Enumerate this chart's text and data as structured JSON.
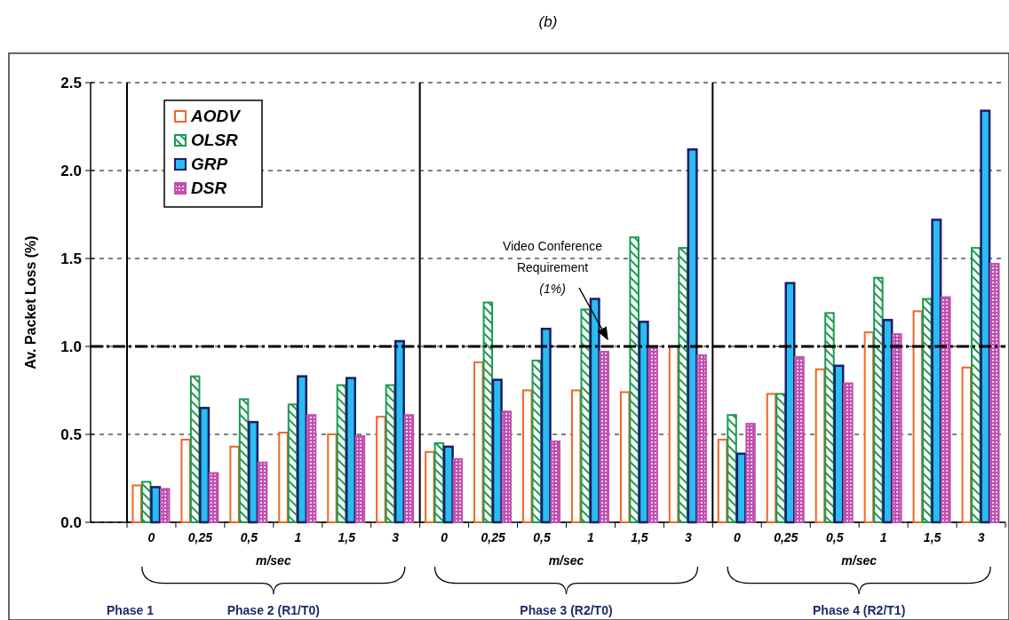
{
  "chart_data": {
    "type": "bar",
    "title": "(b)",
    "ylabel": "Av. Packet Loss (%)",
    "categories": [
      "0",
      "0,25",
      "0,5",
      "1",
      "1,5",
      "3",
      "0",
      "0,25",
      "0,5",
      "1",
      "1,5",
      "3",
      "0",
      "0,25",
      "0,5",
      "1",
      "1,5",
      "3"
    ],
    "series": [
      {
        "name": "AODV",
        "color": "#f26522",
        "values": [
          0.21,
          0.47,
          0.43,
          0.51,
          0.5,
          0.6,
          0.4,
          0.91,
          0.75,
          0.75,
          0.74,
          1.0,
          0.47,
          0.73,
          0.87,
          1.08,
          1.2,
          0.88
        ]
      },
      {
        "name": "OLSR",
        "color": "#1a9a50",
        "values": [
          0.23,
          0.83,
          0.7,
          0.67,
          0.78,
          0.78,
          0.45,
          1.25,
          0.92,
          1.21,
          1.62,
          1.56,
          0.61,
          0.73,
          1.19,
          1.39,
          1.27,
          1.56
        ]
      },
      {
        "name": "GRP",
        "color": "#29bdf0",
        "values": [
          0.2,
          0.65,
          0.57,
          0.83,
          0.82,
          1.03,
          0.43,
          0.81,
          1.1,
          1.27,
          1.14,
          2.12,
          0.39,
          1.36,
          0.89,
          1.15,
          1.72,
          2.34
        ]
      },
      {
        "name": "DSR",
        "color": "#c050b0",
        "values": [
          0.19,
          0.28,
          0.34,
          0.61,
          0.49,
          0.61,
          0.36,
          0.63,
          0.46,
          0.97,
          1.0,
          0.95,
          0.56,
          0.94,
          0.79,
          1.07,
          1.28,
          1.47
        ]
      }
    ],
    "ylim": [
      0,
      2.5
    ],
    "yticks": [
      {
        "value": 0,
        "label": "0.0"
      },
      {
        "value": 0.5,
        "label": "0.5"
      },
      {
        "value": 1,
        "label": "1.0"
      },
      {
        "value": 1.5,
        "label": "1.5"
      },
      {
        "value": 2,
        "label": "2.0"
      },
      {
        "value": 2.5,
        "label": "2.5"
      }
    ],
    "grid": "y",
    "legend": "top left",
    "ref_lines": [
      {
        "axis": "y",
        "value": 1,
        "label": "Video Conference\nRequirement\n(1%)",
        "color": "#000000",
        "line_style": "dashed"
      }
    ],
    "annotations": [
      "m/sec",
      "m/sec",
      "m/sec",
      "Phase 1",
      "Phase 2 (R1/T0)",
      "Phase 3 (R2/T0)",
      "Phase 4 (R2/T1)"
    ]
  }
}
